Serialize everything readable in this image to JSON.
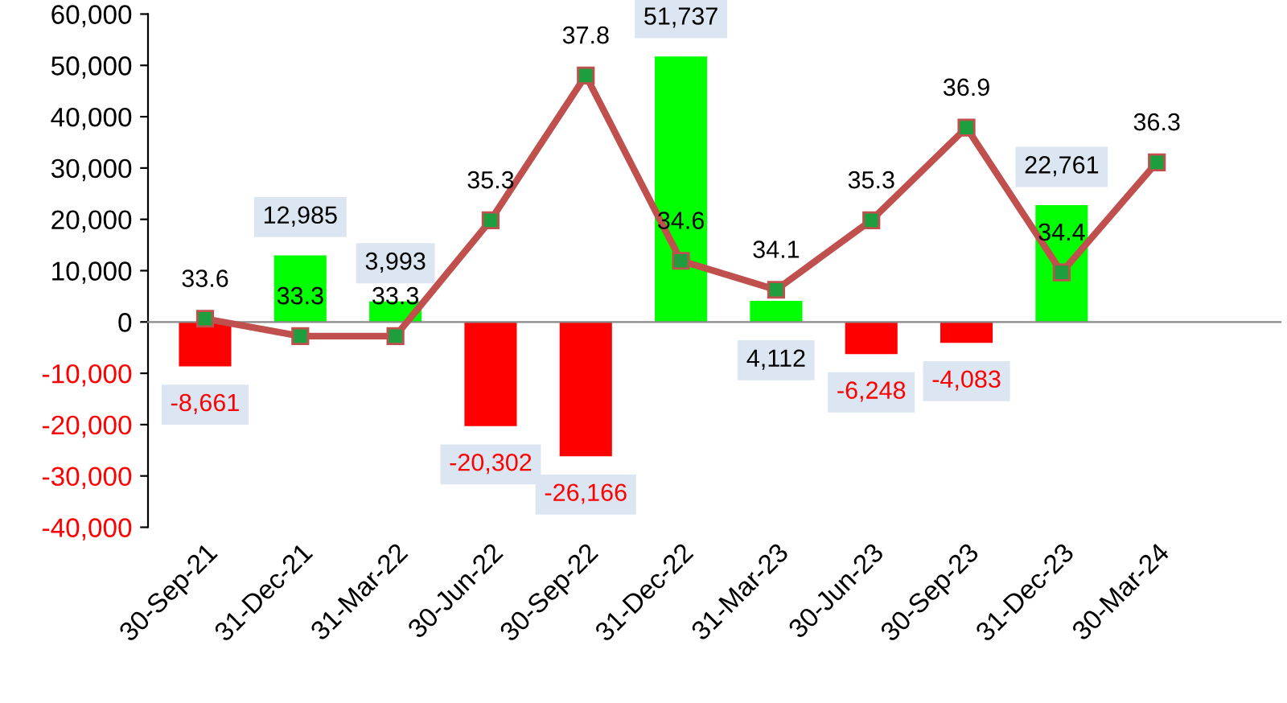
{
  "chart_data": {
    "type": "bar",
    "categories": [
      "30-Sep-21",
      "31-Dec-21",
      "31-Mar-22",
      "30-Jun-22",
      "30-Sep-22",
      "31-Dec-22",
      "31-Mar-23",
      "30-Jun-23",
      "30-Sep-23",
      "31-Dec-23",
      "30-Mar-24"
    ],
    "series": [
      {
        "colors": [
          "#ff0000",
          "#00ff00",
          "#00ff00",
          "#ff0000",
          "#ff0000",
          "#00ff00",
          "#00ff00",
          "#ff0000",
          "#ff0000",
          "#00ff00",
          null
        ],
        "values": [
          -8661,
          12985,
          3993,
          -20302,
          -26166,
          51737,
          4112,
          -6248,
          -4083,
          22761,
          null
        ],
        "value_labels": [
          "-8,661",
          "12,985",
          "3,993",
          "-20,302",
          "-26,166",
          "51,737",
          "4,112",
          "-6,248",
          "-4,083",
          "22,761",
          null
        ]
      },
      {
        "type": "line",
        "axis": "y2",
        "color": "#c0504d",
        "marker": "square",
        "values": [
          33.6,
          33.3,
          33.3,
          35.3,
          37.8,
          34.6,
          34.1,
          35.3,
          36.9,
          34.4,
          36.3
        ]
      }
    ],
    "ylim": [
      -40000,
      60000
    ],
    "yticks": [
      {
        "value": -40000,
        "label": "-40,000"
      },
      {
        "value": -30000,
        "label": "-30,000"
      },
      {
        "value": -20000,
        "label": "-20,000"
      },
      {
        "value": -10000,
        "label": "-10,000"
      },
      0,
      {
        "value": 10000,
        "label": "10,000"
      },
      {
        "value": 20000,
        "label": "20,000"
      },
      {
        "value": 30000,
        "label": "30,000"
      },
      {
        "value": 40000,
        "label": "40,000"
      },
      {
        "value": 50000,
        "label": "50,000"
      },
      {
        "value": 60000,
        "label": "60,000"
      }
    ],
    "y2lim": [
      30.0,
      38.86
    ],
    "data_labels": true,
    "legend": false
  }
}
